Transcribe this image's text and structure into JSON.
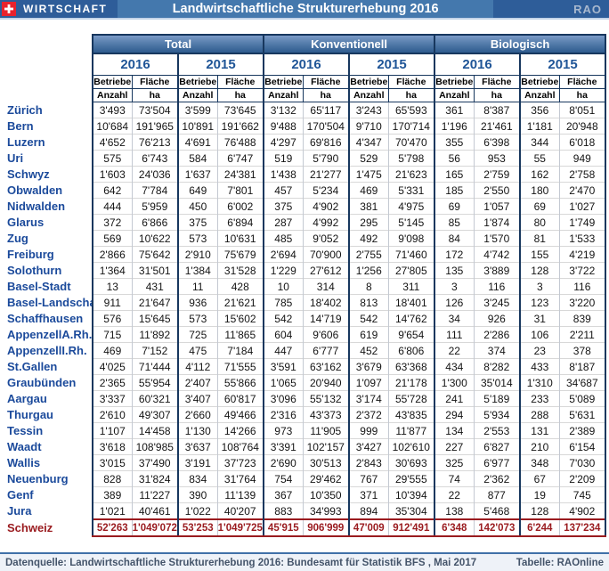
{
  "header": {
    "brand": "WIRTSCHAFT",
    "title": "Landwirtschaftliche Strukturerhebung 2016",
    "logo": "RAO"
  },
  "table": {
    "groups": [
      {
        "label": "Total"
      },
      {
        "label": "Konventionell"
      },
      {
        "label": "Biologisch"
      }
    ],
    "years": [
      "2016",
      "2015"
    ],
    "col_betriebe": "Betriebe",
    "col_flaeche": "Fläche",
    "sub_anzahl": "Anzahl",
    "sub_ha": "ha",
    "rows": [
      {
        "name": "Zürich",
        "values": [
          "3'493",
          "73'504",
          "3'599",
          "73'645",
          "3'132",
          "65'117",
          "3'243",
          "65'593",
          "361",
          "8'387",
          "356",
          "8'051"
        ]
      },
      {
        "name": "Bern",
        "values": [
          "10'684",
          "191'965",
          "10'891",
          "191'662",
          "9'488",
          "170'504",
          "9'710",
          "170'714",
          "1'196",
          "21'461",
          "1'181",
          "20'948"
        ]
      },
      {
        "name": "Luzern",
        "values": [
          "4'652",
          "76'213",
          "4'691",
          "76'488",
          "4'297",
          "69'816",
          "4'347",
          "70'470",
          "355",
          "6'398",
          "344",
          "6'018"
        ]
      },
      {
        "name": "Uri",
        "values": [
          "575",
          "6'743",
          "584",
          "6'747",
          "519",
          "5'790",
          "529",
          "5'798",
          "56",
          "953",
          "55",
          "949"
        ]
      },
      {
        "name": "Schwyz",
        "values": [
          "1'603",
          "24'036",
          "1'637",
          "24'381",
          "1'438",
          "21'277",
          "1'475",
          "21'623",
          "165",
          "2'759",
          "162",
          "2'758"
        ]
      },
      {
        "name": "Obwalden",
        "values": [
          "642",
          "7'784",
          "649",
          "7'801",
          "457",
          "5'234",
          "469",
          "5'331",
          "185",
          "2'550",
          "180",
          "2'470"
        ]
      },
      {
        "name": "Nidwalden",
        "values": [
          "444",
          "5'959",
          "450",
          "6'002",
          "375",
          "4'902",
          "381",
          "4'975",
          "69",
          "1'057",
          "69",
          "1'027"
        ]
      },
      {
        "name": "Glarus",
        "values": [
          "372",
          "6'866",
          "375",
          "6'894",
          "287",
          "4'992",
          "295",
          "5'145",
          "85",
          "1'874",
          "80",
          "1'749"
        ]
      },
      {
        "name": "Zug",
        "values": [
          "569",
          "10'622",
          "573",
          "10'631",
          "485",
          "9'052",
          "492",
          "9'098",
          "84",
          "1'570",
          "81",
          "1'533"
        ]
      },
      {
        "name": "Freiburg",
        "values": [
          "2'866",
          "75'642",
          "2'910",
          "75'679",
          "2'694",
          "70'900",
          "2'755",
          "71'460",
          "172",
          "4'742",
          "155",
          "4'219"
        ]
      },
      {
        "name": "Solothurn",
        "values": [
          "1'364",
          "31'501",
          "1'384",
          "31'528",
          "1'229",
          "27'612",
          "1'256",
          "27'805",
          "135",
          "3'889",
          "128",
          "3'722"
        ]
      },
      {
        "name": "Basel-Stadt",
        "values": [
          "13",
          "431",
          "11",
          "428",
          "10",
          "314",
          "8",
          "311",
          "3",
          "116",
          "3",
          "116"
        ]
      },
      {
        "name": "Basel-Landschaft",
        "values": [
          "911",
          "21'647",
          "936",
          "21'621",
          "785",
          "18'402",
          "813",
          "18'401",
          "126",
          "3'245",
          "123",
          "3'220"
        ]
      },
      {
        "name": "Schaffhausen",
        "values": [
          "576",
          "15'645",
          "573",
          "15'602",
          "542",
          "14'719",
          "542",
          "14'762",
          "34",
          "926",
          "31",
          "839"
        ]
      },
      {
        "name": "AppenzellA.Rh.",
        "values": [
          "715",
          "11'892",
          "725",
          "11'865",
          "604",
          "9'606",
          "619",
          "9'654",
          "111",
          "2'286",
          "106",
          "2'211"
        ]
      },
      {
        "name": "AppenzellI.Rh.",
        "values": [
          "469",
          "7'152",
          "475",
          "7'184",
          "447",
          "6'777",
          "452",
          "6'806",
          "22",
          "374",
          "23",
          "378"
        ]
      },
      {
        "name": "St.Gallen",
        "values": [
          "4'025",
          "71'444",
          "4'112",
          "71'555",
          "3'591",
          "63'162",
          "3'679",
          "63'368",
          "434",
          "8'282",
          "433",
          "8'187"
        ]
      },
      {
        "name": "Graubünden",
        "values": [
          "2'365",
          "55'954",
          "2'407",
          "55'866",
          "1'065",
          "20'940",
          "1'097",
          "21'178",
          "1'300",
          "35'014",
          "1'310",
          "34'687"
        ]
      },
      {
        "name": "Aargau",
        "values": [
          "3'337",
          "60'321",
          "3'407",
          "60'817",
          "3'096",
          "55'132",
          "3'174",
          "55'728",
          "241",
          "5'189",
          "233",
          "5'089"
        ]
      },
      {
        "name": "Thurgau",
        "values": [
          "2'610",
          "49'307",
          "2'660",
          "49'466",
          "2'316",
          "43'373",
          "2'372",
          "43'835",
          "294",
          "5'934",
          "288",
          "5'631"
        ]
      },
      {
        "name": "Tessin",
        "values": [
          "1'107",
          "14'458",
          "1'130",
          "14'266",
          "973",
          "11'905",
          "999",
          "11'877",
          "134",
          "2'553",
          "131",
          "2'389"
        ]
      },
      {
        "name": "Waadt",
        "values": [
          "3'618",
          "108'985",
          "3'637",
          "108'764",
          "3'391",
          "102'157",
          "3'427",
          "102'610",
          "227",
          "6'827",
          "210",
          "6'154"
        ]
      },
      {
        "name": "Wallis",
        "values": [
          "3'015",
          "37'490",
          "3'191",
          "37'723",
          "2'690",
          "30'513",
          "2'843",
          "30'693",
          "325",
          "6'977",
          "348",
          "7'030"
        ]
      },
      {
        "name": "Neuenburg",
        "values": [
          "828",
          "31'824",
          "834",
          "31'764",
          "754",
          "29'462",
          "767",
          "29'555",
          "74",
          "2'362",
          "67",
          "2'209"
        ]
      },
      {
        "name": "Genf",
        "values": [
          "389",
          "11'227",
          "390",
          "11'139",
          "367",
          "10'350",
          "371",
          "10'394",
          "22",
          "877",
          "19",
          "745"
        ]
      },
      {
        "name": "Jura",
        "values": [
          "1'021",
          "40'461",
          "1'022",
          "40'207",
          "883",
          "34'993",
          "894",
          "35'304",
          "138",
          "5'468",
          "128",
          "4'902"
        ]
      }
    ],
    "total_row": {
      "name": "Schweiz",
      "values": [
        "52'263",
        "1'049'072",
        "53'253",
        "1'049'725",
        "45'915",
        "906'999",
        "47'009",
        "912'491",
        "6'348",
        "142'073",
        "6'244",
        "137'234"
      ]
    }
  },
  "footer": {
    "source": "Datenquelle: Landwirtschaftliche Strukturerhebung 2016: Bundesamt für Statistik BFS , Mai 2017",
    "credit": "Tabelle: RAOnline"
  },
  "colors": {
    "brand_segment_blue": "#2E5D99",
    "title_segment_blue": "#4478AD",
    "group_header_gradient_top": "#7A9AC6",
    "group_header_gradient_bottom": "#2E5B8E",
    "table_border_navy": "#17375E",
    "canton_label_blue": "#1B4A9B",
    "year_label_blue": "#1F5597",
    "total_row_red": "#9A1B1F",
    "footer_line_blue": "#4070A8",
    "swiss_flag_red": "#E8222D"
  }
}
